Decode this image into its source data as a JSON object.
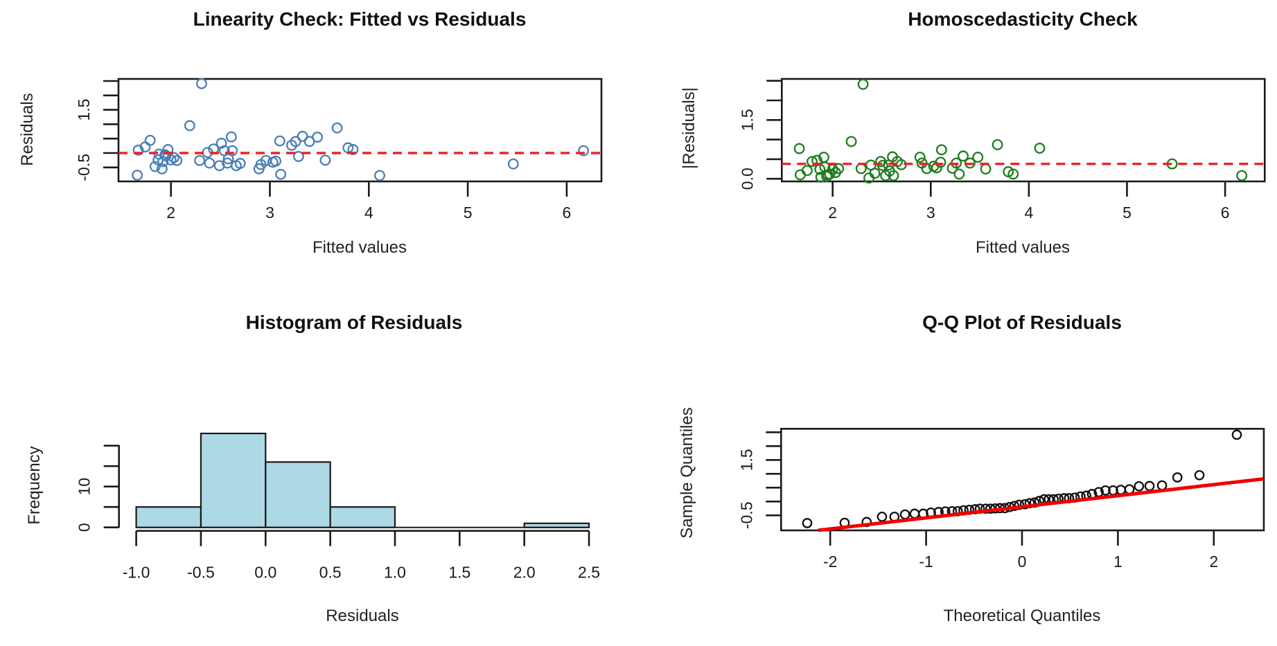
{
  "page": {
    "background": "#ffffff"
  },
  "colors": {
    "frame": "#1a1a1a",
    "tick": "#1a1a1a",
    "text": "#1a1a1a",
    "point_blue": "#4a7eb5",
    "point_green": "#1e7b1e",
    "ref_line_red": "#ee2222",
    "qq_line_red": "#f20000",
    "hist_fill": "#add8e6",
    "hist_border": "#1a1a1a"
  },
  "chart_data": [
    {
      "id": "linearity",
      "type": "scatter",
      "title": "Linearity Check: Fitted vs Residuals",
      "xlabel": "Fitted values",
      "ylabel": "Residuals",
      "xlim": [
        1.47,
        6.35
      ],
      "ylim": [
        -0.99,
        2.57
      ],
      "xticks": [
        2,
        3,
        4,
        5,
        6
      ],
      "xtick_labels": [
        "2",
        "3",
        "4",
        "5",
        "6"
      ],
      "yticks": [
        -0.5,
        0,
        0.5,
        1,
        1.5,
        2,
        2.5
      ],
      "ytick_labels": [
        "-0.5",
        null,
        null,
        null,
        "1.5",
        null,
        null
      ],
      "ref_line_y": 0,
      "ref_line_style": "dashed",
      "point_color_key": "point_blue",
      "points": [
        [
          1.66,
          -0.77
        ],
        [
          1.67,
          0.1
        ],
        [
          1.74,
          0.21
        ],
        [
          1.79,
          0.44
        ],
        [
          1.84,
          -0.47
        ],
        [
          1.87,
          -0.24
        ],
        [
          1.88,
          -0.04
        ],
        [
          1.91,
          -0.55
        ],
        [
          1.92,
          -0.3
        ],
        [
          1.94,
          -0.06
        ],
        [
          1.95,
          -0.1
        ],
        [
          1.97,
          0.12
        ],
        [
          2.0,
          -0.24
        ],
        [
          2.03,
          -0.16
        ],
        [
          2.06,
          -0.26
        ],
        [
          2.19,
          0.95
        ],
        [
          2.29,
          -0.26
        ],
        [
          2.31,
          2.41
        ],
        [
          2.37,
          0.02
        ],
        [
          2.39,
          -0.35
        ],
        [
          2.43,
          0.14
        ],
        [
          2.49,
          -0.44
        ],
        [
          2.51,
          0.34
        ],
        [
          2.54,
          0.08
        ],
        [
          2.57,
          -0.35
        ],
        [
          2.58,
          -0.2
        ],
        [
          2.61,
          0.56
        ],
        [
          2.62,
          0.08
        ],
        [
          2.66,
          -0.44
        ],
        [
          2.7,
          -0.36
        ],
        [
          2.89,
          -0.55
        ],
        [
          2.91,
          -0.4
        ],
        [
          2.96,
          -0.26
        ],
        [
          3.03,
          -0.32
        ],
        [
          3.06,
          -0.28
        ],
        [
          3.1,
          0.42
        ],
        [
          3.11,
          -0.74
        ],
        [
          3.22,
          0.27
        ],
        [
          3.26,
          0.4
        ],
        [
          3.29,
          -0.12
        ],
        [
          3.33,
          0.58
        ],
        [
          3.4,
          0.4
        ],
        [
          3.48,
          0.55
        ],
        [
          3.56,
          -0.25
        ],
        [
          3.68,
          0.87
        ],
        [
          3.79,
          0.18
        ],
        [
          3.84,
          0.12
        ],
        [
          4.11,
          -0.78
        ],
        [
          5.46,
          -0.38
        ],
        [
          6.17,
          0.08
        ]
      ]
    },
    {
      "id": "homoscedasticity",
      "type": "scatter",
      "title": "Homoscedasticity Check",
      "xlabel": "Fitted values",
      "ylabel": "|Residuals|",
      "xlim": [
        1.48,
        6.4
      ],
      "ylim": [
        -0.07,
        2.55
      ],
      "xticks": [
        2,
        3,
        4,
        5,
        6
      ],
      "xtick_labels": [
        "2",
        "3",
        "4",
        "5",
        "6"
      ],
      "yticks": [
        0,
        0.5,
        1,
        1.5,
        2,
        2.5
      ],
      "ytick_labels": [
        "0.0",
        null,
        null,
        "1.5",
        null,
        null
      ],
      "ref_line_y": 0.38,
      "ref_line_style": "dashed",
      "point_color_key": "point_green",
      "points": [
        [
          1.66,
          0.77
        ],
        [
          1.67,
          0.1
        ],
        [
          1.74,
          0.21
        ],
        [
          1.79,
          0.44
        ],
        [
          1.84,
          0.47
        ],
        [
          1.87,
          0.24
        ],
        [
          1.88,
          0.04
        ],
        [
          1.91,
          0.55
        ],
        [
          1.92,
          0.3
        ],
        [
          1.94,
          0.06
        ],
        [
          1.95,
          0.1
        ],
        [
          1.97,
          0.12
        ],
        [
          2.0,
          0.24
        ],
        [
          2.03,
          0.16
        ],
        [
          2.06,
          0.26
        ],
        [
          2.19,
          0.95
        ],
        [
          2.29,
          0.26
        ],
        [
          2.31,
          2.41
        ],
        [
          2.37,
          0.02
        ],
        [
          2.39,
          0.35
        ],
        [
          2.43,
          0.14
        ],
        [
          2.49,
          0.44
        ],
        [
          2.51,
          0.34
        ],
        [
          2.54,
          0.08
        ],
        [
          2.57,
          0.35
        ],
        [
          2.58,
          0.2
        ],
        [
          2.61,
          0.56
        ],
        [
          2.62,
          0.08
        ],
        [
          2.66,
          0.44
        ],
        [
          2.7,
          0.36
        ],
        [
          2.89,
          0.55
        ],
        [
          2.91,
          0.4
        ],
        [
          2.96,
          0.26
        ],
        [
          3.03,
          0.32
        ],
        [
          3.06,
          0.28
        ],
        [
          3.1,
          0.42
        ],
        [
          3.11,
          0.74
        ],
        [
          3.22,
          0.27
        ],
        [
          3.26,
          0.4
        ],
        [
          3.29,
          0.12
        ],
        [
          3.33,
          0.58
        ],
        [
          3.4,
          0.4
        ],
        [
          3.48,
          0.55
        ],
        [
          3.56,
          0.25
        ],
        [
          3.68,
          0.87
        ],
        [
          3.79,
          0.18
        ],
        [
          3.84,
          0.12
        ],
        [
          4.11,
          0.78
        ],
        [
          5.46,
          0.38
        ],
        [
          6.17,
          0.08
        ]
      ]
    },
    {
      "id": "histogram",
      "type": "histogram",
      "title": "Histogram of Residuals",
      "xlabel": "Residuals",
      "ylabel": "Frequency",
      "bin_start": -1.0,
      "bin_width": 0.5,
      "counts": [
        5,
        23,
        16,
        5,
        0,
        0,
        1
      ],
      "xticks": [
        -1.0,
        -0.5,
        0.0,
        0.5,
        1.0,
        1.5,
        2.0,
        2.5
      ],
      "xtick_labels": [
        "-1.0",
        "-0.5",
        "0.0",
        "0.5",
        "1.0",
        "1.5",
        "2.0",
        "2.5"
      ],
      "yticks": [
        0,
        5,
        10,
        15,
        20
      ],
      "ytick_labels": [
        "0",
        null,
        "10",
        null,
        null
      ]
    },
    {
      "id": "qq",
      "type": "qq",
      "title": "Q-Q Plot of Residuals",
      "xlabel": "Theoretical Quantiles",
      "ylabel": "Sample Quantiles",
      "xlim": [
        -2.51,
        2.52
      ],
      "ylim": [
        -1.04,
        2.62
      ],
      "xticks": [
        -2,
        -1,
        0,
        1,
        2
      ],
      "xtick_labels": [
        "-2",
        "-1",
        "0",
        "1",
        "2"
      ],
      "yticks": [
        -0.5,
        0,
        0.5,
        1,
        1.5,
        2,
        2.5
      ],
      "ytick_labels": [
        "-0.5",
        null,
        null,
        null,
        "1.5",
        null,
        null
      ],
      "line": {
        "intercept": -0.19,
        "slope": 0.4
      },
      "theoretical": [
        -2.24,
        -1.85,
        -1.62,
        -1.46,
        -1.33,
        -1.22,
        -1.12,
        -1.03,
        -0.95,
        -0.87,
        -0.8,
        -0.73,
        -0.67,
        -0.61,
        -0.55,
        -0.49,
        -0.44,
        -0.38,
        -0.33,
        -0.28,
        -0.23,
        -0.18,
        -0.13,
        -0.08,
        -0.03,
        0.03,
        0.08,
        0.13,
        0.18,
        0.23,
        0.28,
        0.33,
        0.38,
        0.44,
        0.49,
        0.55,
        0.61,
        0.67,
        0.73,
        0.8,
        0.87,
        0.95,
        1.03,
        1.12,
        1.22,
        1.33,
        1.46,
        1.62,
        1.85,
        2.24
      ],
      "sample": [
        -0.78,
        -0.77,
        -0.74,
        -0.55,
        -0.55,
        -0.47,
        -0.44,
        -0.44,
        -0.4,
        -0.38,
        -0.36,
        -0.35,
        -0.35,
        -0.32,
        -0.3,
        -0.28,
        -0.26,
        -0.26,
        -0.26,
        -0.25,
        -0.24,
        -0.24,
        -0.2,
        -0.16,
        -0.12,
        -0.1,
        -0.06,
        -0.04,
        0.02,
        0.08,
        0.08,
        0.08,
        0.1,
        0.12,
        0.12,
        0.14,
        0.18,
        0.21,
        0.27,
        0.34,
        0.4,
        0.4,
        0.42,
        0.44,
        0.55,
        0.56,
        0.58,
        0.87,
        0.95,
        2.41
      ]
    }
  ]
}
